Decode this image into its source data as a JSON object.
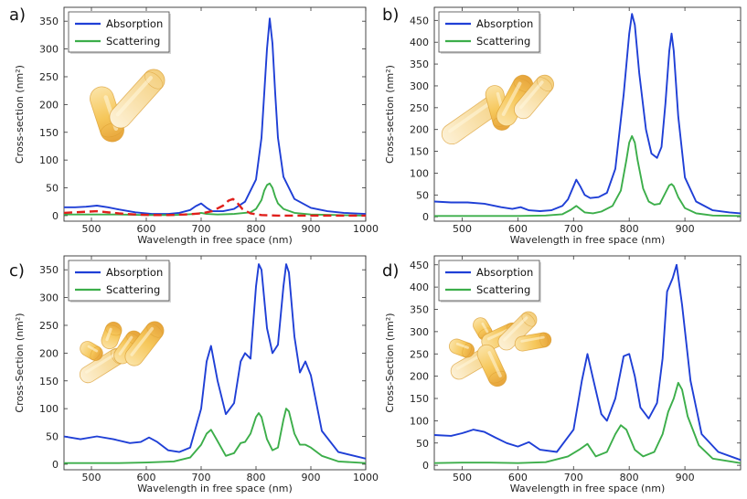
{
  "colors": {
    "absorption": "#1f3fd6",
    "scattering": "#3cae4a",
    "dashed": "#e0201c",
    "rod_fill": "#f6c75a",
    "rod_edge": "#d99a2b"
  },
  "chart_data": [
    {
      "panel": "a)",
      "type": "line",
      "xlabel": "Wavelength in free space (nm)",
      "ylabel": "Cross-section (nm²)",
      "xlim": [
        450,
        1000
      ],
      "ylim": [
        -10,
        375
      ],
      "xticks": [
        500,
        600,
        700,
        800,
        900,
        1000
      ],
      "xtick_labels": [
        "500",
        "600",
        "700",
        "800",
        "900",
        "1000"
      ],
      "yticks": [
        0,
        50,
        100,
        150,
        200,
        250,
        300,
        350
      ],
      "ytick_labels": [
        "0",
        "50",
        "100",
        "150",
        "200",
        "250",
        "300",
        "350"
      ],
      "legend": [
        "Absorption",
        "Scattering"
      ],
      "legend_position": "top-left",
      "illustration": "two-rods-v",
      "series": [
        {
          "name": "Absorption",
          "style": "solid",
          "x": [
            450,
            470,
            490,
            510,
            530,
            550,
            580,
            610,
            640,
            660,
            680,
            690,
            700,
            710,
            720,
            740,
            760,
            780,
            800,
            810,
            815,
            820,
            825,
            830,
            835,
            840,
            850,
            870,
            900,
            930,
            960,
            1000
          ],
          "y": [
            15,
            15,
            16,
            18,
            15,
            11,
            6,
            3,
            3,
            5,
            10,
            17,
            22,
            14,
            8,
            8,
            12,
            25,
            65,
            140,
            220,
            300,
            355,
            310,
            220,
            140,
            70,
            30,
            14,
            8,
            5,
            3
          ]
        },
        {
          "name": "Scattering",
          "style": "solid",
          "x": [
            450,
            500,
            550,
            600,
            650,
            690,
            700,
            710,
            730,
            760,
            790,
            800,
            810,
            815,
            820,
            825,
            830,
            835,
            840,
            850,
            870,
            900,
            950,
            1000
          ],
          "y": [
            2,
            2,
            2,
            1,
            1,
            3,
            5,
            3,
            2,
            3,
            6,
            12,
            28,
            45,
            55,
            58,
            50,
            34,
            22,
            12,
            5,
            2,
            1,
            0
          ]
        },
        {
          "name": "",
          "style": "dashed",
          "x": [
            450,
            470,
            490,
            510,
            530,
            550,
            580,
            610,
            640,
            670,
            700,
            720,
            740,
            750,
            758,
            765,
            775,
            790,
            810,
            840,
            880,
            930,
            1000
          ],
          "y": [
            5,
            6,
            7,
            8,
            6,
            4,
            2,
            1,
            1,
            2,
            4,
            8,
            18,
            27,
            30,
            24,
            12,
            4,
            1,
            0,
            0,
            0,
            0
          ]
        }
      ]
    },
    {
      "panel": "b)",
      "type": "line",
      "xlabel": "Wavelength in free space (nm)",
      "ylabel": "Cross-section (nm²)",
      "xlim": [
        450,
        1000
      ],
      "ylim": [
        -10,
        480
      ],
      "xticks": [
        500,
        600,
        700,
        800,
        900
      ],
      "xtick_labels": [
        "500",
        "600",
        "700",
        "800",
        "900"
      ],
      "yticks": [
        0,
        50,
        100,
        150,
        200,
        250,
        300,
        350,
        400,
        450
      ],
      "ytick_labels": [
        "0",
        "50",
        "100",
        "150",
        "200",
        "250",
        "300",
        "350",
        "400",
        "450"
      ],
      "legend": [
        "Absorption",
        "Scattering"
      ],
      "legend_position": "top-left",
      "illustration": "three-rods",
      "series": [
        {
          "name": "Absorption",
          "style": "solid",
          "x": [
            450,
            480,
            510,
            540,
            570,
            590,
            605,
            620,
            640,
            660,
            680,
            690,
            700,
            705,
            712,
            720,
            730,
            745,
            760,
            775,
            790,
            800,
            805,
            810,
            818,
            830,
            840,
            850,
            858,
            865,
            872,
            876,
            880,
            888,
            900,
            920,
            950,
            980,
            1000
          ],
          "y": [
            35,
            33,
            33,
            30,
            22,
            18,
            22,
            15,
            13,
            15,
            25,
            40,
            70,
            85,
            70,
            50,
            43,
            45,
            55,
            110,
            280,
            420,
            465,
            440,
            330,
            200,
            145,
            135,
            160,
            260,
            380,
            420,
            380,
            230,
            90,
            35,
            15,
            10,
            8
          ]
        },
        {
          "name": "Scattering",
          "style": "solid",
          "x": [
            450,
            500,
            550,
            600,
            650,
            680,
            695,
            705,
            712,
            720,
            735,
            750,
            770,
            785,
            795,
            800,
            805,
            810,
            815,
            825,
            835,
            845,
            855,
            865,
            872,
            876,
            880,
            888,
            900,
            920,
            950,
            1000
          ],
          "y": [
            2,
            2,
            2,
            2,
            3,
            6,
            16,
            25,
            18,
            10,
            8,
            12,
            25,
            60,
            130,
            170,
            185,
            170,
            130,
            65,
            35,
            28,
            30,
            55,
            72,
            75,
            70,
            45,
            20,
            8,
            3,
            2
          ]
        }
      ]
    },
    {
      "panel": "c)",
      "type": "line",
      "xlabel": "Wavelength in free space (nm)",
      "ylabel": "Cross-Section (nm²)",
      "xlim": [
        450,
        1000
      ],
      "ylim": [
        -10,
        375
      ],
      "xticks": [
        500,
        600,
        700,
        800,
        900,
        1000
      ],
      "xtick_labels": [
        "500",
        "600",
        "700",
        "800",
        "900",
        "1000"
      ],
      "yticks": [
        0,
        50,
        100,
        150,
        200,
        250,
        300,
        350
      ],
      "ytick_labels": [
        "0",
        "50",
        "100",
        "150",
        "200",
        "250",
        "300",
        "350"
      ],
      "legend": [
        "Absorption",
        "Scattering"
      ],
      "legend_position": "top-left",
      "illustration": "rod-chain",
      "series": [
        {
          "name": "Absorption",
          "style": "solid",
          "x": [
            450,
            480,
            510,
            540,
            570,
            590,
            605,
            620,
            640,
            660,
            680,
            700,
            710,
            718,
            730,
            745,
            760,
            772,
            780,
            790,
            800,
            805,
            810,
            820,
            830,
            840,
            850,
            855,
            860,
            870,
            880,
            890,
            900,
            920,
            950,
            1000
          ],
          "y": [
            50,
            45,
            50,
            45,
            38,
            40,
            48,
            40,
            25,
            22,
            30,
            100,
            185,
            213,
            150,
            90,
            110,
            185,
            200,
            190,
            320,
            360,
            350,
            245,
            200,
            215,
            320,
            360,
            345,
            230,
            165,
            185,
            160,
            60,
            22,
            10
          ]
        },
        {
          "name": "Scattering",
          "style": "solid",
          "x": [
            450,
            500,
            550,
            600,
            650,
            680,
            700,
            710,
            718,
            728,
            745,
            760,
            772,
            780,
            790,
            800,
            805,
            810,
            820,
            830,
            840,
            850,
            855,
            860,
            870,
            880,
            890,
            900,
            920,
            950,
            1000
          ],
          "y": [
            2,
            2,
            2,
            3,
            5,
            12,
            35,
            55,
            62,
            45,
            15,
            20,
            38,
            40,
            55,
            85,
            92,
            85,
            45,
            25,
            30,
            80,
            100,
            95,
            55,
            35,
            35,
            30,
            15,
            5,
            2
          ]
        }
      ]
    },
    {
      "panel": "d)",
      "type": "line",
      "xlabel": "Wavelength in free space (nm)",
      "ylabel": "Cross-Section (nm²)",
      "xlim": [
        450,
        1000
      ],
      "ylim": [
        -10,
        470
      ],
      "xticks": [
        500,
        600,
        700,
        800,
        900
      ],
      "xtick_labels": [
        "500",
        "600",
        "700",
        "800",
        "900"
      ],
      "yticks": [
        0,
        50,
        100,
        150,
        200,
        250,
        300,
        350,
        400,
        450
      ],
      "ytick_labels": [
        "0",
        "50",
        "100",
        "150",
        "200",
        "250",
        "300",
        "350",
        "400",
        "450"
      ],
      "legend": [
        "Absorption",
        "Scattering"
      ],
      "legend_position": "top-left",
      "illustration": "rod-cluster",
      "series": [
        {
          "name": "Absorption",
          "style": "solid",
          "x": [
            450,
            480,
            500,
            520,
            540,
            560,
            580,
            600,
            620,
            640,
            670,
            700,
            715,
            725,
            735,
            750,
            760,
            775,
            790,
            800,
            810,
            820,
            835,
            850,
            860,
            868,
            878,
            885,
            895,
            910,
            930,
            960,
            1000
          ],
          "y": [
            68,
            66,
            72,
            80,
            75,
            62,
            50,
            42,
            52,
            35,
            30,
            80,
            190,
            250,
            195,
            115,
            100,
            150,
            245,
            250,
            200,
            130,
            105,
            140,
            240,
            390,
            420,
            450,
            360,
            190,
            70,
            30,
            12
          ]
        },
        {
          "name": "Scattering",
          "style": "solid",
          "x": [
            450,
            500,
            550,
            600,
            650,
            690,
            710,
            725,
            740,
            760,
            775,
            785,
            795,
            810,
            825,
            845,
            860,
            870,
            880,
            888,
            895,
            905,
            925,
            950,
            1000
          ],
          "y": [
            5,
            6,
            6,
            5,
            7,
            20,
            35,
            48,
            20,
            30,
            70,
            90,
            80,
            35,
            20,
            30,
            70,
            120,
            150,
            185,
            170,
            110,
            45,
            15,
            5
          ]
        }
      ]
    }
  ]
}
